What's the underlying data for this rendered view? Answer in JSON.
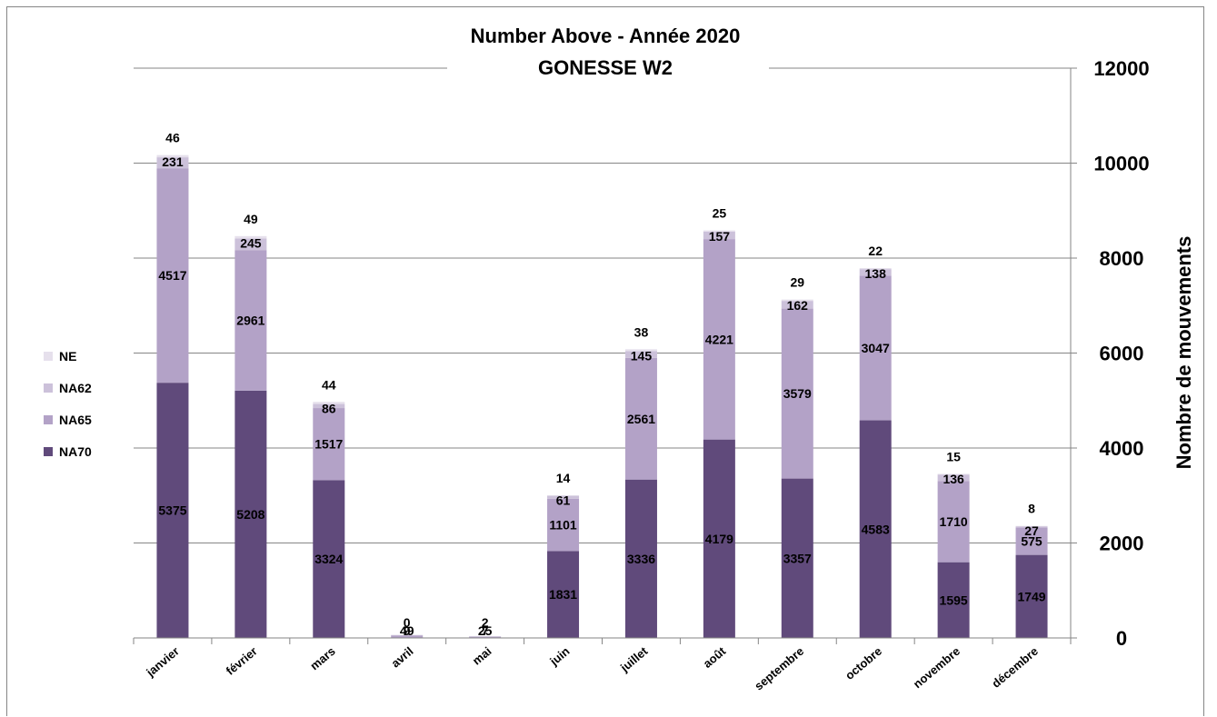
{
  "chart_data": {
    "type": "bar",
    "stacked": true,
    "title": "Number Above - Année 2020",
    "subtitle": "GONESSE W2",
    "ylabel": "Nombre de mouvements",
    "xlabel": "",
    "ylim": [
      0,
      12000
    ],
    "yticks": [
      0,
      2000,
      4000,
      6000,
      8000,
      10000,
      12000
    ],
    "y_axis_side": "right",
    "grid": true,
    "legend_position": "left",
    "categories": [
      "janvier",
      "février",
      "mars",
      "avril",
      "mai",
      "juin",
      "juillet",
      "août",
      "septembre",
      "octobre",
      "novembre",
      "décembre"
    ],
    "series": [
      {
        "name": "NA70",
        "color": "#604a7b",
        "values": [
          5375,
          5208,
          3324,
          4,
          2,
          1831,
          3336,
          4179,
          3357,
          4583,
          1595,
          1749
        ],
        "value_labels": [
          "5375",
          "5208",
          "3324",
          "",
          "",
          "1831",
          "3336",
          "4179",
          "3357",
          "4583",
          "1595",
          "1749"
        ]
      },
      {
        "name": "NA65",
        "color": "#b3a2c7",
        "values": [
          4517,
          2961,
          1517,
          49,
          25,
          1101,
          2561,
          4221,
          3579,
          3047,
          1710,
          575
        ],
        "value_labels": [
          "4517",
          "2961",
          "1517",
          "49",
          "25",
          "1101",
          "2561",
          "4221",
          "3579",
          "3047",
          "1710",
          "575"
        ]
      },
      {
        "name": "NA62",
        "color": "#ccc1da",
        "values": [
          231,
          245,
          86,
          9,
          7,
          61,
          145,
          157,
          162,
          138,
          136,
          27
        ],
        "value_labels": [
          "231",
          "245",
          "86",
          "9",
          "7",
          "61",
          "145",
          "157",
          "162",
          "138",
          "136",
          "27"
        ]
      },
      {
        "name": "NE",
        "color": "#e6e0ec",
        "values": [
          46,
          49,
          44,
          0,
          2,
          14,
          38,
          25,
          29,
          22,
          15,
          8
        ],
        "value_labels": [
          "46",
          "49",
          "44",
          "0",
          "2",
          "14",
          "38",
          "25",
          "29",
          "22",
          "15",
          "8"
        ]
      }
    ],
    "legend_order": [
      "NE",
      "NA62",
      "NA65",
      "NA70"
    ]
  }
}
